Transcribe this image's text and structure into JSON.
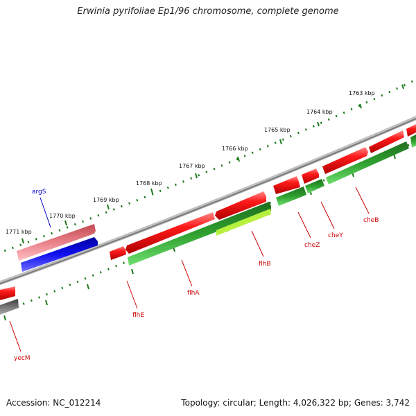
{
  "title": "Erwinia pyrifoliae Ep1/96 chromosome, complete genome",
  "footer": {
    "accession": "Accession: NC_012214",
    "summary": "Topology: circular; Length: 4,026,322 bp; Genes: 3,742"
  },
  "colors": {
    "forward_cds": "#e51a1a",
    "reverse_cds": "#2fb52f",
    "blue_gene": "#1010e0",
    "pink_gene": "#e87a80",
    "backbone": "#8a8a8a",
    "tick": "#1a7a1a",
    "label_red": "#cc0000",
    "label_blue": "#0000cc"
  },
  "scale_labels": [
    "1763 kbp",
    "1764 kbp",
    "1765 kbp",
    "1766 kbp",
    "1767 kbp",
    "1768 kbp",
    "1769 kbp",
    "1770 kbp",
    "1771 kbp"
  ],
  "gene_labels": [
    "argS",
    "yecM",
    "flhE",
    "flhA",
    "flhB",
    "cheZ",
    "cheY",
    "cheB"
  ]
}
